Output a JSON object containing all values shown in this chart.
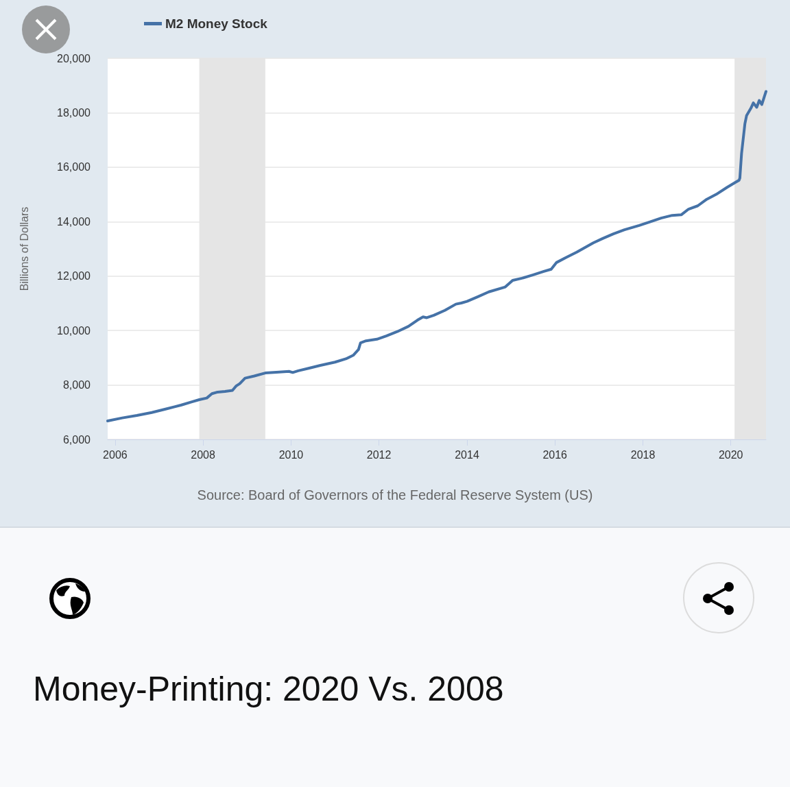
{
  "chart_data": {
    "type": "line",
    "title": "Money-Printing: 2020 Vs. 2008",
    "ylabel": "Billions of Dollars",
    "annotations": [
      "Source: Board of Governors of the Federal Reserve System (US)"
    ],
    "x": [
      "2005-10-31",
      "2006-03-01",
      "2006-07-01",
      "2006-11-01",
      "2007-03-01",
      "2007-07-01",
      "2007-10-01",
      "2007-12-01",
      "2008-02-01",
      "2008-03-15",
      "2008-05-01",
      "2008-07-01",
      "2008-09-01",
      "2008-10-01",
      "2008-11-01",
      "2008-12-15",
      "2009-03-01",
      "2009-06-01",
      "2009-09-01",
      "2009-12-15",
      "2010-01-15",
      "2010-03-01",
      "2010-06-01",
      "2010-09-01",
      "2011-01-01",
      "2011-04-01",
      "2011-06-01",
      "2011-07-15",
      "2011-08-01",
      "2011-09-15",
      "2011-12-15",
      "2012-03-01",
      "2012-06-01",
      "2012-09-01",
      "2012-11-15",
      "2013-01-01",
      "2013-02-01",
      "2013-04-01",
      "2013-07-01",
      "2013-10-01",
      "2013-11-15",
      "2014-01-01",
      "2014-04-01",
      "2014-07-01",
      "2014-11-15",
      "2015-01-15",
      "2015-04-01",
      "2015-07-01",
      "2015-10-01",
      "2015-12-01",
      "2016-01-15",
      "2016-04-01",
      "2016-07-01",
      "2016-11-15",
      "2017-02-01",
      "2017-05-01",
      "2017-08-01",
      "2017-12-01",
      "2018-03-01",
      "2018-06-01",
      "2018-09-01",
      "2018-11-15",
      "2019-01-15",
      "2019-04-01",
      "2019-06-15",
      "2019-09-01",
      "2019-12-01",
      "2020-02-15",
      "2020-03-09",
      "2020-03-16",
      "2020-03-30",
      "2020-04-27",
      "2020-05-11",
      "2020-06-15",
      "2020-07-06",
      "2020-08-03",
      "2020-08-24",
      "2020-09-14",
      "2020-10-19"
    ],
    "series": [
      {
        "name": "M2 Money Stock",
        "color": "#4572a7",
        "values": [
          6680,
          6790,
          6880,
          6990,
          7120,
          7260,
          7380,
          7460,
          7520,
          7680,
          7740,
          7760,
          7800,
          7960,
          8050,
          8250,
          8330,
          8440,
          8470,
          8500,
          8460,
          8520,
          8620,
          8720,
          8840,
          8960,
          9090,
          9300,
          9550,
          9620,
          9680,
          9800,
          9960,
          10150,
          10380,
          10500,
          10470,
          10560,
          10740,
          10970,
          11010,
          11070,
          11240,
          11420,
          11600,
          11840,
          11920,
          12040,
          12170,
          12250,
          12500,
          12680,
          12880,
          13220,
          13380,
          13550,
          13700,
          13860,
          13990,
          14130,
          14230,
          14250,
          14460,
          14580,
          14820,
          15000,
          15260,
          15460,
          15520,
          15600,
          16500,
          17600,
          17900,
          18160,
          18360,
          18200,
          18450,
          18300,
          18780
        ]
      }
    ],
    "xlim": [
      "2005-10-31",
      "2020-10-19"
    ],
    "xticks": [
      "2006",
      "2008",
      "2010",
      "2012",
      "2014",
      "2016",
      "2018",
      "2020"
    ],
    "ylim": [
      6000,
      20000
    ],
    "yticks": [
      {
        "value": 6000,
        "label": "6,000"
      },
      {
        "value": 8000,
        "label": "8,000"
      },
      {
        "value": 10000,
        "label": "10,000"
      },
      {
        "value": 12000,
        "label": "12,000"
      },
      {
        "value": 14000,
        "label": "14,000"
      },
      {
        "value": 16000,
        "label": "16,000"
      },
      {
        "value": 18000,
        "label": "18,000"
      },
      {
        "value": 20000,
        "label": "20,000"
      }
    ],
    "bands": [
      {
        "axis": "x",
        "from": "2007-12-01",
        "to": "2009-06-01",
        "color": "#e5e5e5"
      },
      {
        "axis": "x",
        "from": "2020-02-01",
        "to": "2020-10-19",
        "color": "#e5e5e5"
      }
    ],
    "grid": "y",
    "legend": "top left"
  }
}
